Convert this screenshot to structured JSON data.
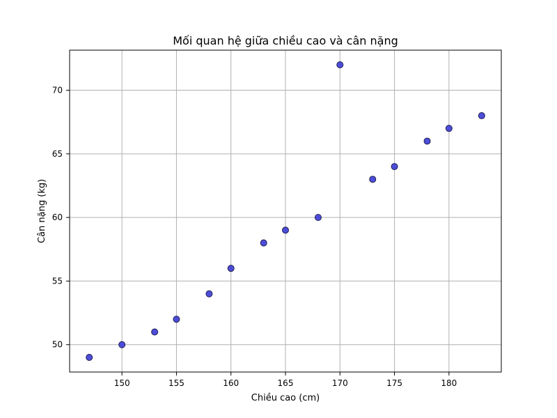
{
  "chart_data": {
    "type": "scatter",
    "title": "Mối quan hệ giữa chiều cao và cân nặng",
    "xlabel": "Chiều cao (cm)",
    "ylabel": "Cân nặng (kg)",
    "xlim": [
      145.2,
      184.8
    ],
    "ylim": [
      47.85,
      73.15
    ],
    "x_ticks": [
      150,
      155,
      160,
      165,
      170,
      175,
      180
    ],
    "y_ticks": [
      50,
      55,
      60,
      65,
      70
    ],
    "grid": true,
    "series": [
      {
        "points": [
          {
            "x": 147,
            "y": 49
          },
          {
            "x": 150,
            "y": 50
          },
          {
            "x": 153,
            "y": 51
          },
          {
            "x": 155,
            "y": 52
          },
          {
            "x": 158,
            "y": 54
          },
          {
            "x": 160,
            "y": 56
          },
          {
            "x": 163,
            "y": 58
          },
          {
            "x": 165,
            "y": 59
          },
          {
            "x": 168,
            "y": 60
          },
          {
            "x": 170,
            "y": 72
          },
          {
            "x": 173,
            "y": 63
          },
          {
            "x": 175,
            "y": 64
          },
          {
            "x": 178,
            "y": 66
          },
          {
            "x": 180,
            "y": 67
          },
          {
            "x": 183,
            "y": 68
          }
        ]
      }
    ],
    "colors": {
      "marker_fill": "#3b3bd6",
      "marker_edge": "#1f1f55",
      "grid": "#b0b0b0",
      "axis": "#000000"
    }
  }
}
